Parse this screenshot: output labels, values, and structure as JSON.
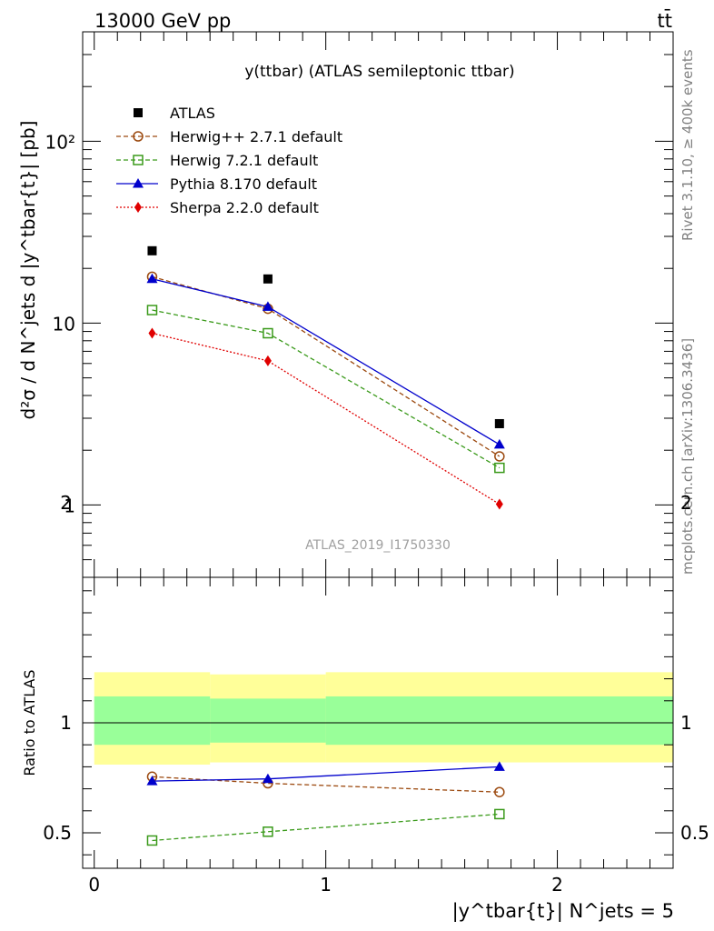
{
  "header": {
    "left": "13000 GeV pp",
    "right": "tt̄"
  },
  "side_labels": {
    "rivet": "Rivet 3.1.10, ≥ 400k events",
    "mcplots": "mcplots.cern.ch [arXiv:1306.3436]"
  },
  "chart_data": [
    {
      "type": "scatter",
      "title": "y(ttbar) (ATLAS semileptonic ttbar)",
      "analysis_label": "ATLAS_2019_I1750330",
      "ylabel": "d²σ / d N^jets d |y^tbar{t}| [pb]",
      "yscale": "log",
      "ylim": [
        0.4,
        400
      ],
      "xlim": [
        -0.05,
        2.5
      ],
      "y_tick_labels": [
        "1",
        "10",
        "10²"
      ],
      "legend_position": "top-left",
      "x": [
        0.25,
        0.75,
        1.75
      ],
      "series": [
        {
          "name": "ATLAS",
          "values": [
            25.0,
            17.5,
            2.8
          ],
          "color": "#000000",
          "marker": "filled-square",
          "line": "none"
        },
        {
          "name": "Herwig++ 2.7.1 default",
          "values": [
            18.0,
            12.0,
            1.85
          ],
          "color": "#9c4a10",
          "marker": "open-circle",
          "line": "dashed"
        },
        {
          "name": "Herwig 7.2.1 default",
          "values": [
            11.8,
            8.8,
            1.6
          ],
          "color": "#3a9a1a",
          "marker": "open-square",
          "line": "dashed"
        },
        {
          "name": "Pythia 8.170 default",
          "values": [
            17.5,
            12.3,
            2.15
          ],
          "color": "#0000cc",
          "marker": "filled-triangle",
          "line": "solid"
        },
        {
          "name": "Sherpa 2.2.0 default",
          "values": [
            8.8,
            6.2,
            1.01
          ],
          "color": "#e00000",
          "marker": "filled-diamond",
          "line": "dotted"
        }
      ]
    },
    {
      "type": "line",
      "ylabel": "Ratio to ATLAS",
      "xlabel": "|y^tbar{t}| N^jets = 5",
      "ylim": [
        0.4,
        2.5
      ],
      "xlim": [
        -0.05,
        2.5
      ],
      "y_tick_labels": [
        "0.5",
        "1",
        "2"
      ],
      "x_tick_labels": [
        "0",
        "1",
        "2"
      ],
      "bands": [
        {
          "color": "#ffff99",
          "edges": [
            0,
            0.5,
            1.0,
            2.5
          ],
          "low": [
            0.81,
            0.82,
            0.82
          ],
          "high": [
            1.23,
            1.22,
            1.23
          ]
        },
        {
          "color": "#99ff99",
          "edges": [
            0,
            0.5,
            1.0,
            2.5
          ],
          "low": [
            0.9,
            0.91,
            0.9
          ],
          "high": [
            1.12,
            1.11,
            1.12
          ]
        }
      ],
      "x": [
        0.25,
        0.75,
        1.75
      ],
      "series": [
        {
          "name": "Herwig++ 2.7.1 default",
          "values": [
            0.755,
            0.725,
            0.685
          ],
          "color": "#9c4a10",
          "marker": "open-circle",
          "line": "dashed"
        },
        {
          "name": "Herwig 7.2.1 default",
          "values": [
            0.465,
            0.505,
            0.585
          ],
          "color": "#3a9a1a",
          "marker": "open-square",
          "line": "dashed"
        },
        {
          "name": "Pythia 8.170 default",
          "values": [
            0.735,
            0.745,
            0.8
          ],
          "color": "#0000cc",
          "marker": "filled-triangle",
          "line": "solid"
        }
      ]
    }
  ]
}
